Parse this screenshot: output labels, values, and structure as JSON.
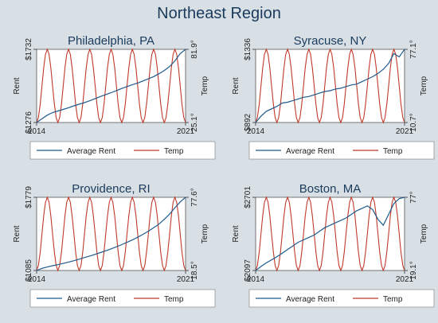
{
  "title": "Northeast Region",
  "colors": {
    "rent": "#1f5a8c",
    "temp": "#c0392b",
    "plot_bg": "#ffffff",
    "frame": "#555555"
  },
  "chart_data": [
    {
      "type": "line",
      "title": "Philadelphia, PA",
      "ylabel": "Rent",
      "y2label": "Temp",
      "xticks": [
        "2014",
        "2021"
      ],
      "xlim": [
        2014,
        2021
      ],
      "ylim": [
        1276,
        1732
      ],
      "y2lim": [
        25.1,
        81.9
      ],
      "yticks": [
        "$1276",
        "$1732"
      ],
      "y2ticks": [
        "25.1°",
        "81.9°"
      ],
      "legend": "bottom",
      "series": [
        {
          "name": "Average Rent",
          "axis": "left",
          "x": [
            2014.0,
            2014.25,
            2014.5,
            2014.75,
            2015.0,
            2015.25,
            2015.5,
            2015.75,
            2016.0,
            2016.25,
            2016.5,
            2016.75,
            2017.0,
            2017.25,
            2017.5,
            2017.75,
            2018.0,
            2018.25,
            2018.5,
            2018.75,
            2019.0,
            2019.25,
            2019.5,
            2019.75,
            2020.0,
            2020.25,
            2020.5,
            2020.75,
            2021.0
          ],
          "values": [
            1276,
            1300,
            1322,
            1338,
            1348,
            1358,
            1368,
            1380,
            1390,
            1400,
            1412,
            1425,
            1438,
            1450,
            1462,
            1475,
            1488,
            1500,
            1512,
            1522,
            1535,
            1548,
            1562,
            1580,
            1600,
            1625,
            1660,
            1705,
            1732
          ]
        },
        {
          "name": "Temp",
          "axis": "right",
          "seasonal": true,
          "min": 25.1,
          "max": 81.9,
          "start_month": 1
        }
      ]
    },
    {
      "type": "line",
      "title": "Syracuse, NY",
      "ylabel": "Rent",
      "y2label": "Temp",
      "xticks": [
        "2014",
        "2021"
      ],
      "xlim": [
        2014,
        2021
      ],
      "ylim": [
        892,
        1336
      ],
      "y2lim": [
        10.7,
        77.1
      ],
      "yticks": [
        "$892",
        "$1336"
      ],
      "y2ticks": [
        "10.7°",
        "77.1°"
      ],
      "legend": "bottom",
      "series": [
        {
          "name": "Average Rent",
          "axis": "left",
          "x": [
            2014.0,
            2014.25,
            2014.5,
            2014.75,
            2015.0,
            2015.25,
            2015.5,
            2015.75,
            2016.0,
            2016.25,
            2016.5,
            2016.75,
            2017.0,
            2017.25,
            2017.5,
            2017.75,
            2018.0,
            2018.25,
            2018.5,
            2018.75,
            2019.0,
            2019.25,
            2019.5,
            2019.75,
            2020.0,
            2020.25,
            2020.5,
            2020.75,
            2021.0
          ],
          "values": [
            892,
            930,
            960,
            975,
            990,
            1010,
            1015,
            1025,
            1035,
            1045,
            1050,
            1060,
            1070,
            1080,
            1085,
            1095,
            1100,
            1110,
            1120,
            1125,
            1140,
            1155,
            1170,
            1190,
            1215,
            1250,
            1310,
            1290,
            1336
          ]
        },
        {
          "name": "Temp",
          "axis": "right",
          "seasonal": true,
          "min": 10.7,
          "max": 77.1,
          "start_month": 1
        }
      ]
    },
    {
      "type": "line",
      "title": "Providence, RI",
      "ylabel": "Rent",
      "y2label": "Temp",
      "xticks": [
        "2014",
        "2021"
      ],
      "xlim": [
        2014,
        2021
      ],
      "ylim": [
        1085,
        1779
      ],
      "y2lim": [
        18.5,
        77.6
      ],
      "yticks": [
        "$1085",
        "$1779"
      ],
      "y2ticks": [
        "18.5°",
        "77.6°"
      ],
      "legend": "bottom",
      "series": [
        {
          "name": "Average Rent",
          "axis": "left",
          "x": [
            2014.0,
            2014.25,
            2014.5,
            2014.75,
            2015.0,
            2015.25,
            2015.5,
            2015.75,
            2016.0,
            2016.25,
            2016.5,
            2016.75,
            2017.0,
            2017.25,
            2017.5,
            2017.75,
            2018.0,
            2018.25,
            2018.5,
            2018.75,
            2019.0,
            2019.25,
            2019.5,
            2019.75,
            2020.0,
            2020.25,
            2020.5,
            2020.75,
            2021.0
          ],
          "values": [
            1085,
            1105,
            1118,
            1130,
            1140,
            1152,
            1165,
            1178,
            1192,
            1208,
            1222,
            1238,
            1255,
            1272,
            1290,
            1310,
            1330,
            1352,
            1375,
            1400,
            1428,
            1458,
            1490,
            1525,
            1570,
            1620,
            1680,
            1735,
            1779
          ]
        },
        {
          "name": "Temp",
          "axis": "right",
          "seasonal": true,
          "min": 18.5,
          "max": 77.6,
          "start_month": 1
        }
      ]
    },
    {
      "type": "line",
      "title": "Boston, MA",
      "ylabel": "Rent",
      "y2label": "Temp",
      "xticks": [
        "2014",
        "2021"
      ],
      "xlim": [
        2014,
        2021
      ],
      "ylim": [
        2097,
        2701
      ],
      "y2lim": [
        19.1,
        77
      ],
      "yticks": [
        "$2097",
        "$2701"
      ],
      "y2ticks": [
        "19.1°",
        "77°"
      ],
      "legend": "bottom",
      "series": [
        {
          "name": "Average Rent",
          "axis": "left",
          "x": [
            2014.0,
            2014.25,
            2014.5,
            2014.75,
            2015.0,
            2015.25,
            2015.5,
            2015.75,
            2016.0,
            2016.25,
            2016.5,
            2016.75,
            2017.0,
            2017.25,
            2017.5,
            2017.75,
            2018.0,
            2018.25,
            2018.5,
            2018.75,
            2019.0,
            2019.25,
            2019.5,
            2019.75,
            2020.0,
            2020.25,
            2020.5,
            2020.75,
            2021.0
          ],
          "values": [
            2097,
            2130,
            2160,
            2185,
            2210,
            2240,
            2270,
            2300,
            2330,
            2350,
            2370,
            2390,
            2420,
            2450,
            2470,
            2490,
            2510,
            2530,
            2560,
            2590,
            2610,
            2630,
            2600,
            2520,
            2470,
            2560,
            2650,
            2690,
            2701
          ]
        },
        {
          "name": "Temp",
          "axis": "right",
          "seasonal": true,
          "min": 19.1,
          "max": 77,
          "start_month": 1
        }
      ]
    }
  ]
}
